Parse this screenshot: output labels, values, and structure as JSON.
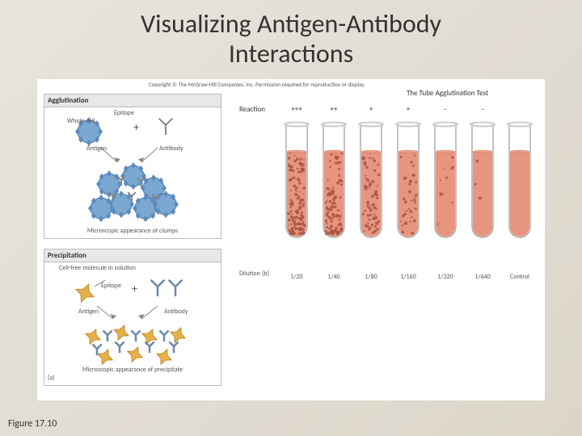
{
  "title_line1": "Visualizing Antigen-Antibody",
  "title_line2": "Interactions",
  "copyright": "Copyright © The McGraw-Hill Companies, Inc. Permission required for reproduction or display.",
  "figure_label": "Figure 17.10",
  "tube_test_title": "The Tube Agglutination Test",
  "agglutination": {
    "header": "Agglutination",
    "whole_cell": "Whole cell",
    "epitope": "Epitope",
    "antigen": "Antigen",
    "antibody": "Antibody",
    "footer": "Microscopic appearance of clumps",
    "cell_color": "#7ba8d0",
    "cell_outline": "#4a7aa8",
    "epitope_color": "#5a8ac0",
    "antibody_color": "#888888"
  },
  "precipitation": {
    "header": "Precipitation",
    "cell_free": "Cell-free molecule in solution",
    "epitope": "Epitope",
    "antigen": "Antigen",
    "antibody": "Antibody",
    "footer": "Microscopic appearance of precipitate",
    "antigen_color": "#e8b04a",
    "antibody_color": "#6a8aa8",
    "panel_a": "(a)"
  },
  "tubes": {
    "reaction_label": "Reaction",
    "dilution_label": "Dilution",
    "panel_b": "(b)",
    "reactions": [
      "+++",
      "++",
      "+",
      "+",
      "−",
      "−",
      ""
    ],
    "dilutions": [
      "1/20",
      "1/40",
      "1/80",
      "1/160",
      "1/320",
      "1/640",
      "Control"
    ],
    "clump_density": [
      0.95,
      0.75,
      0.45,
      0.25,
      0.08,
      0.02,
      0.0
    ],
    "liquid_color": "#e89580",
    "clump_color": "#a85540",
    "tube_outline": "#999999",
    "tube_rim": "#cccccc"
  }
}
